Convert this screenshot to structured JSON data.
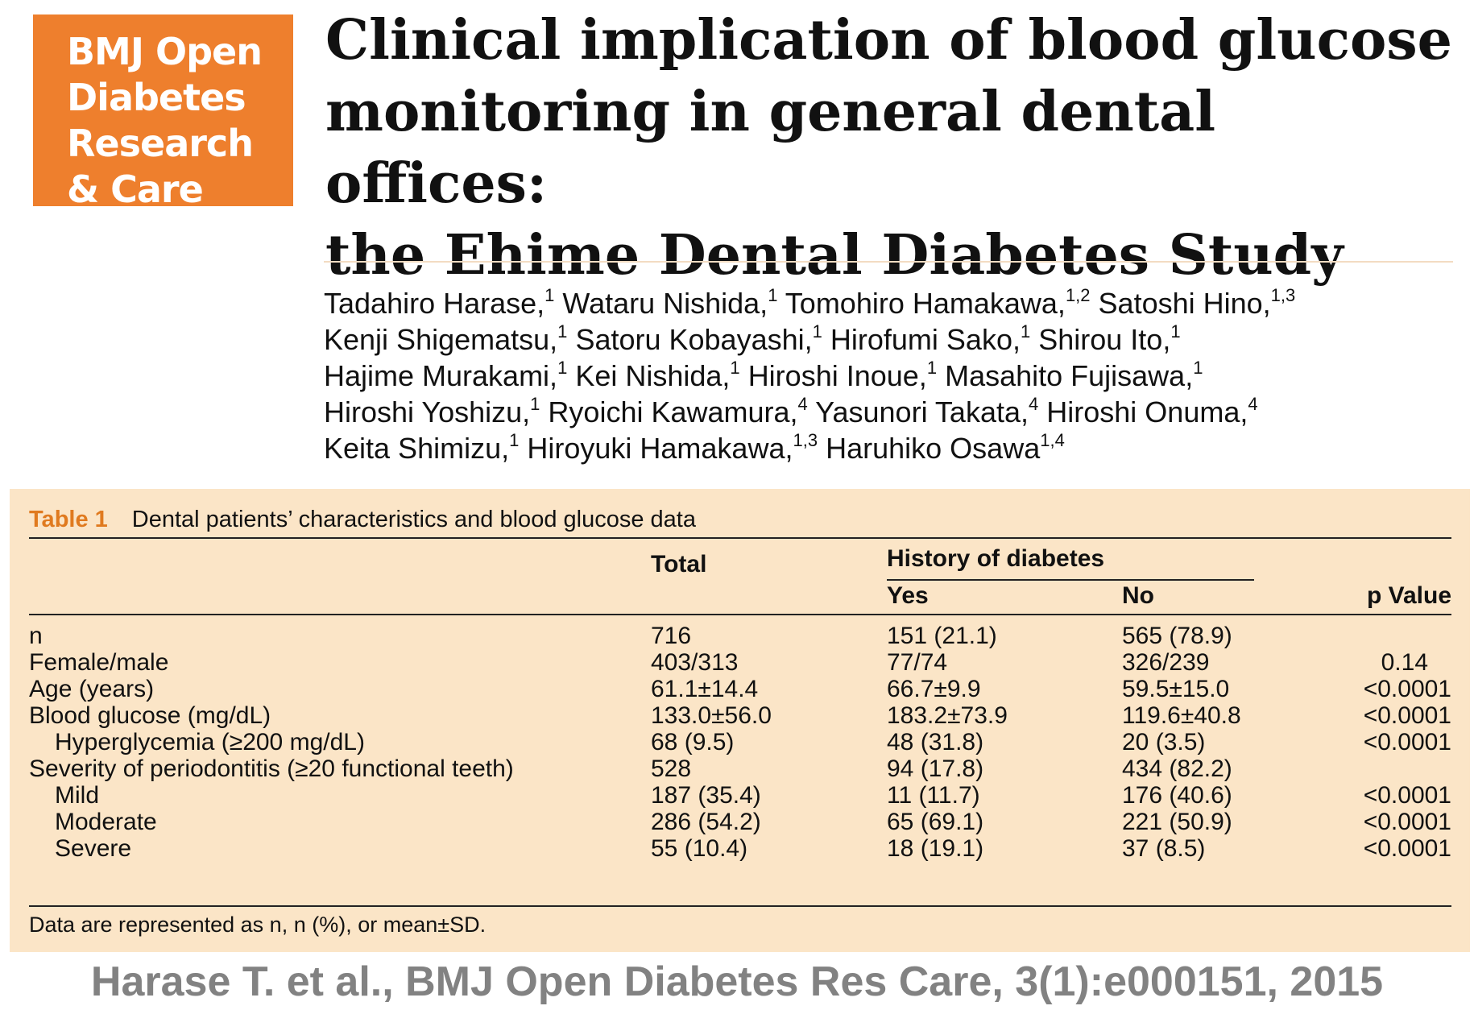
{
  "logo": {
    "lines": [
      "BMJ Open",
      "Diabetes",
      "Research",
      "& Care"
    ],
    "color": "#ee7f2d"
  },
  "title": {
    "line1": "Clinical implication of blood glucose",
    "line2": "monitoring in general dental offices:",
    "line3": "the Ehime Dental Diabetes Study"
  },
  "authors": [
    [
      [
        "Tadahiro Harase,",
        "1"
      ],
      [
        "Wataru Nishida,",
        "1"
      ],
      [
        "Tomohiro Hamakawa,",
        "1,2"
      ],
      [
        "Satoshi Hino,",
        "1,3"
      ]
    ],
    [
      [
        "Kenji Shigematsu,",
        "1"
      ],
      [
        "Satoru Kobayashi,",
        "1"
      ],
      [
        "Hirofumi Sako,",
        "1"
      ],
      [
        "Shirou Ito,",
        "1"
      ]
    ],
    [
      [
        "Hajime Murakami,",
        "1"
      ],
      [
        "Kei Nishida,",
        "1"
      ],
      [
        "Hiroshi Inoue,",
        "1"
      ],
      [
        "Masahito Fujisawa,",
        "1"
      ]
    ],
    [
      [
        "Hiroshi Yoshizu,",
        "1"
      ],
      [
        "Ryoichi Kawamura,",
        "4"
      ],
      [
        "Yasunori Takata,",
        "4"
      ],
      [
        "Hiroshi Onuma,",
        "4"
      ]
    ],
    [
      [
        "Keita Shimizu,",
        "1"
      ],
      [
        "Hiroyuki Hamakawa,",
        "1,3"
      ],
      [
        "Haruhiko Osawa",
        "1,4"
      ]
    ]
  ],
  "table": {
    "label": "Table 1",
    "caption": "Dental patients’ characteristics and blood glucose data",
    "headers": {
      "total": "Total",
      "history": "History of diabetes",
      "yes": "Yes",
      "no": "No",
      "p": "p Value"
    },
    "rows": [
      {
        "label": "n",
        "total": "716",
        "yes": "151 (21.1)",
        "no": "565 (78.9)",
        "p": ""
      },
      {
        "label": "Female/male",
        "total": "403/313",
        "yes": "77/74",
        "no": "326/239",
        "p": "0.14"
      },
      {
        "label": "Age (years)",
        "total": "61.1±14.4",
        "yes": "66.7±9.9",
        "no": "59.5±15.0",
        "p": "<0.0001"
      },
      {
        "label": "Blood glucose (mg/dL)",
        "total": "133.0±56.0",
        "yes": "183.2±73.9",
        "no": "119.6±40.8",
        "p": "<0.0001"
      },
      {
        "label": "Hyperglycemia (≥200 mg/dL)",
        "total": "68 (9.5)",
        "yes": "48 (31.8)",
        "no": "20 (3.5)",
        "p": "<0.0001"
      },
      {
        "label": "Severity of periodontitis (≥20 functional teeth)",
        "total": "528",
        "yes": "94 (17.8)",
        "no": "434 (82.2)",
        "p": ""
      },
      {
        "label": "Mild",
        "total": "187 (35.4)",
        "yes": "11 (11.7)",
        "no": "176 (40.6)",
        "p": "<0.0001"
      },
      {
        "label": "Moderate",
        "total": "286 (54.2)",
        "yes": "65 (69.1)",
        "no": "221 (50.9)",
        "p": "<0.0001"
      },
      {
        "label": "Severe",
        "total": "55 (10.4)",
        "yes": "18 (19.1)",
        "no": "37 (8.5)",
        "p": "<0.0001"
      }
    ],
    "footnote": "Data are represented as n, n (%), or mean±SD.",
    "background": "#fbe5c7",
    "label_color": "#e07a1f"
  },
  "citation": "Harase T. et al., BMJ Open Diabetes Res Care, 3(1):e000151, 2015"
}
